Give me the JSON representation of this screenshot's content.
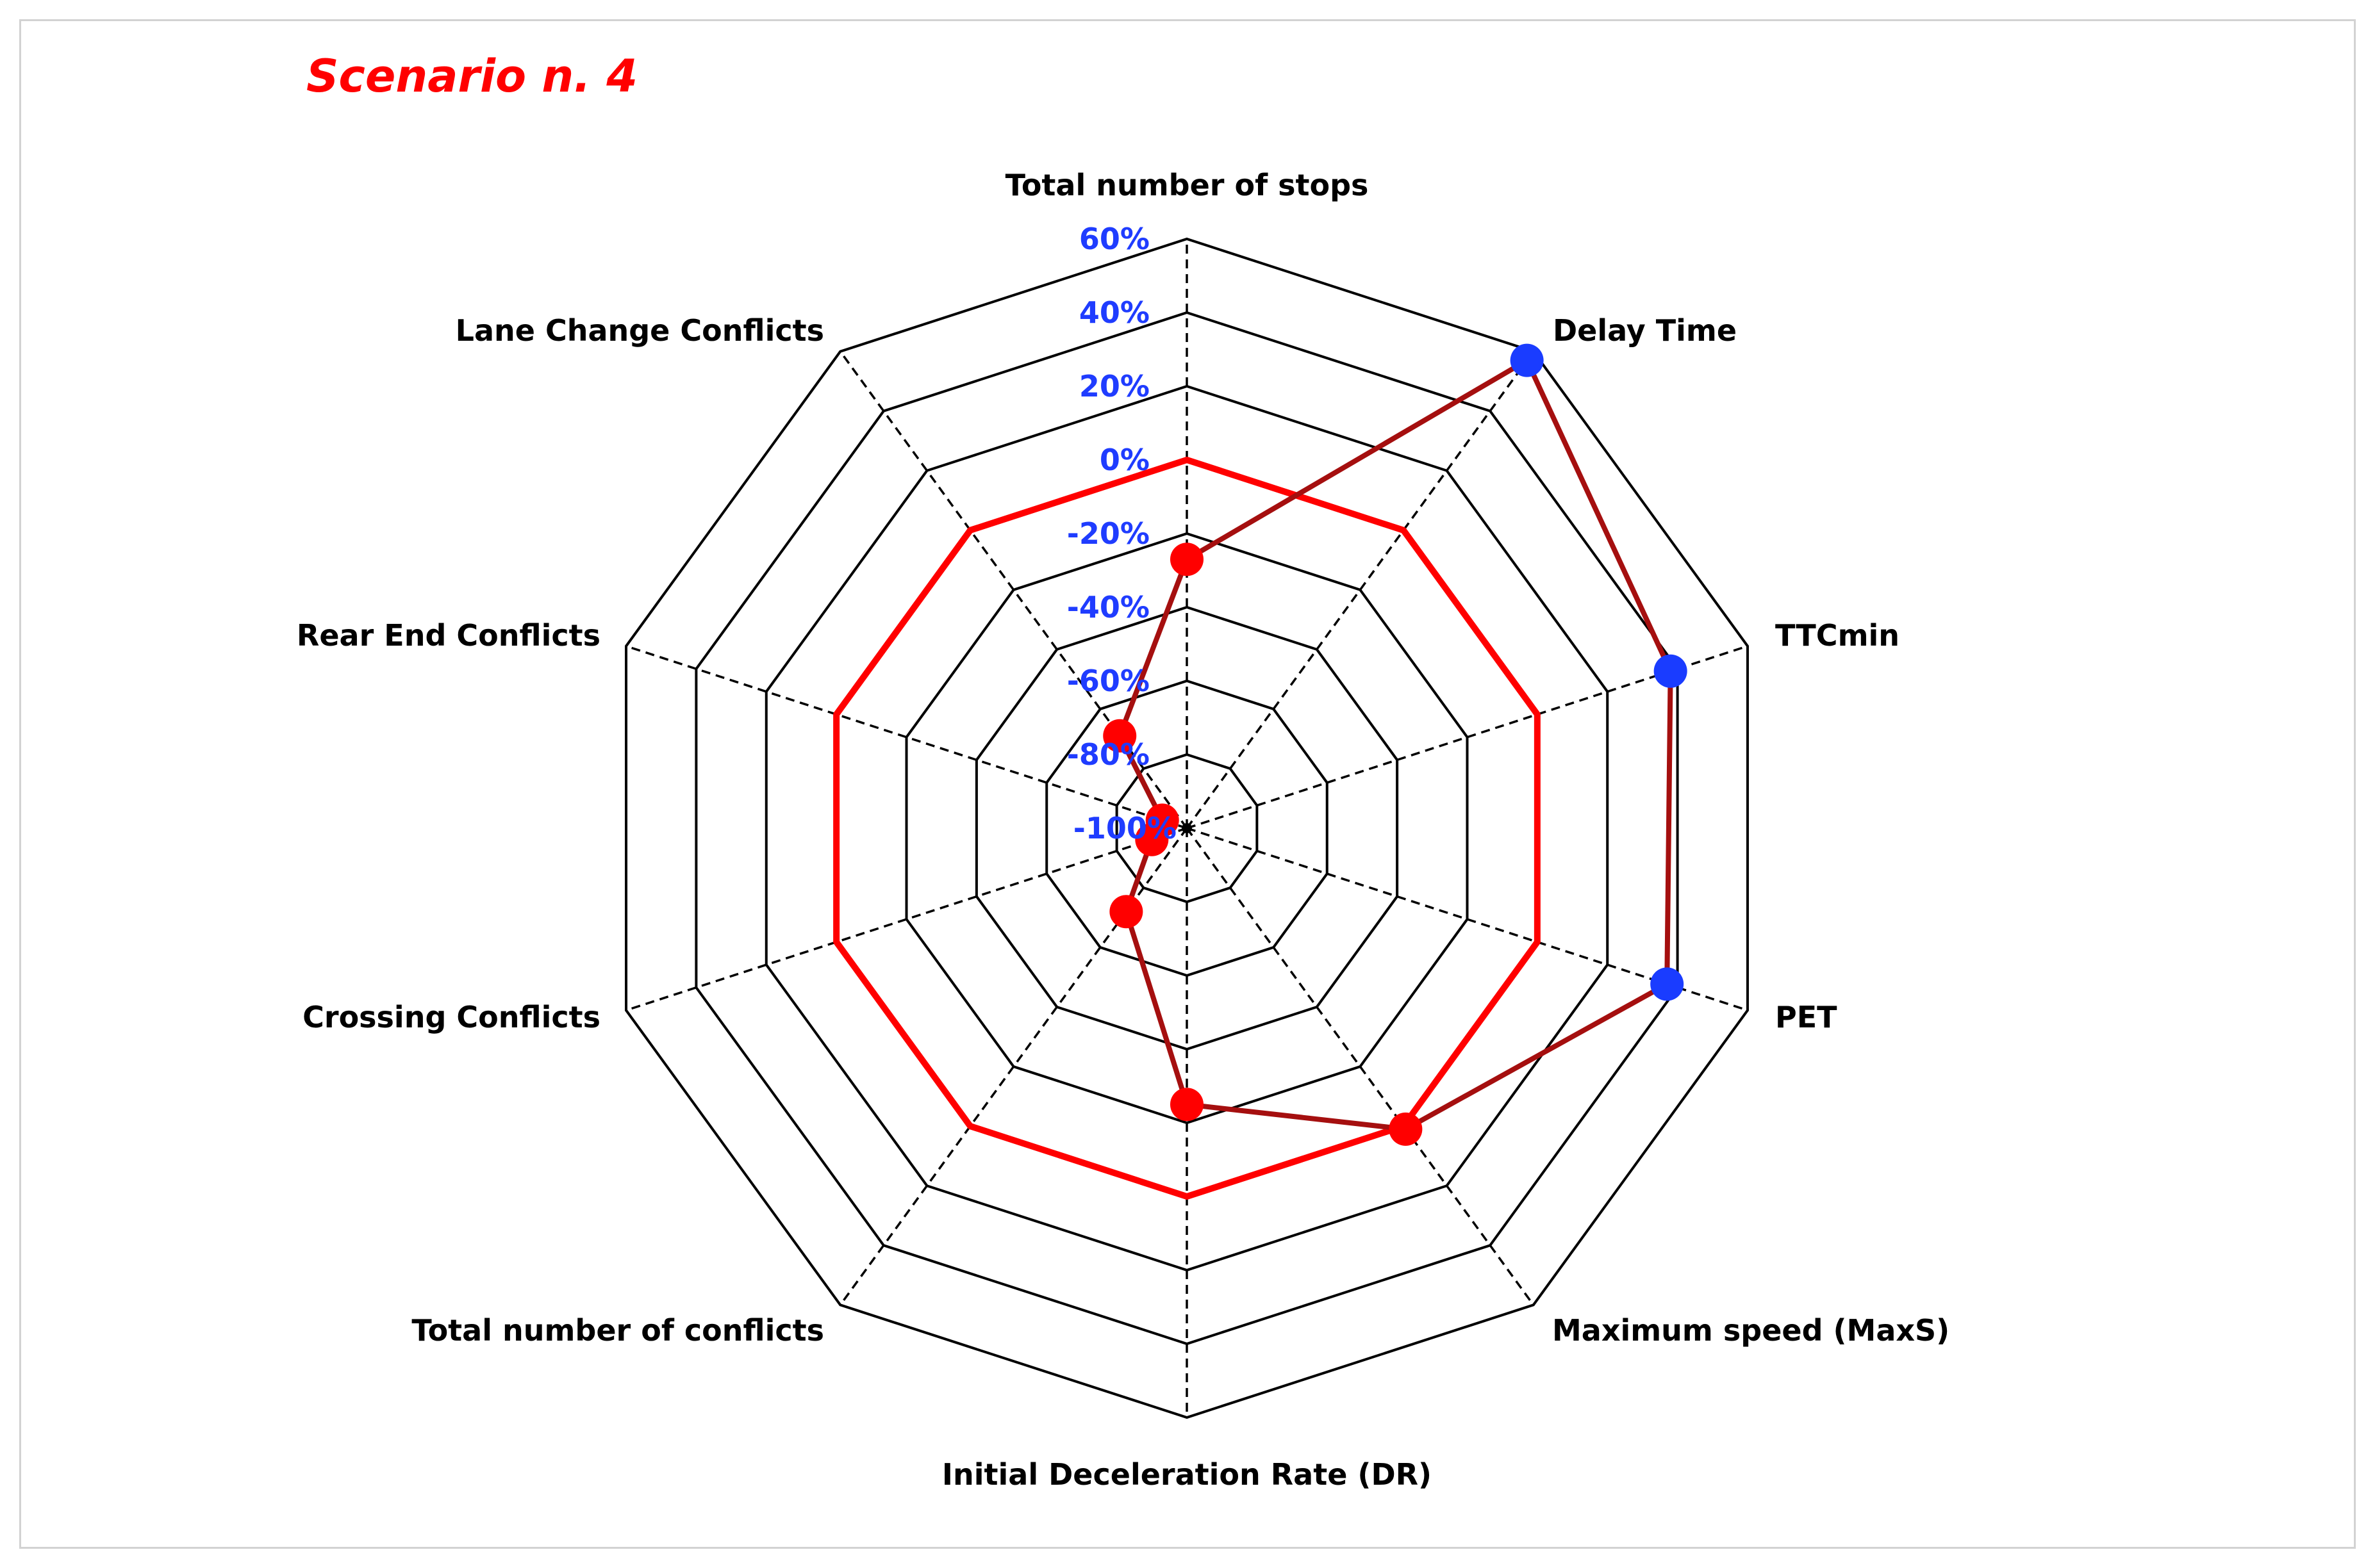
{
  "chart_data": {
    "type": "radar",
    "title": "Scenario n. 4",
    "categories": [
      "Total number of stops",
      "Delay Time",
      "TTCmin",
      "PET",
      "Maximum speed (MaxS)",
      "Initial Deceleration Rate (DR)",
      "Total number of conflicts",
      "Crossing Conflicts",
      "Rear End Conflicts",
      "Lane Change Conflicts"
    ],
    "ticks": [
      "-100%",
      "-80%",
      "-60%",
      "-40%",
      "-20%",
      "0%",
      "20%",
      "40%",
      "60%"
    ],
    "rlim": [
      -100,
      60
    ],
    "tick_step": 20,
    "series": [
      {
        "values": [
          0,
          0,
          0,
          0,
          0,
          0,
          0,
          0,
          0,
          0
        ],
        "color": "#ff0000",
        "markers": false
      },
      {
        "values": [
          -27,
          57,
          38,
          37,
          1,
          -25,
          -72,
          -90,
          -93,
          -69
        ],
        "color": "#a50f0f",
        "markers": true,
        "marker_colors": [
          "#ff0000",
          "#1a3cff",
          "#1a3cff",
          "#1a3cff",
          "#ff0000",
          "#ff0000",
          "#ff0000",
          "#ff0000",
          "#ff0000",
          "#ff0000"
        ]
      }
    ],
    "grid": true,
    "legend": "none"
  }
}
